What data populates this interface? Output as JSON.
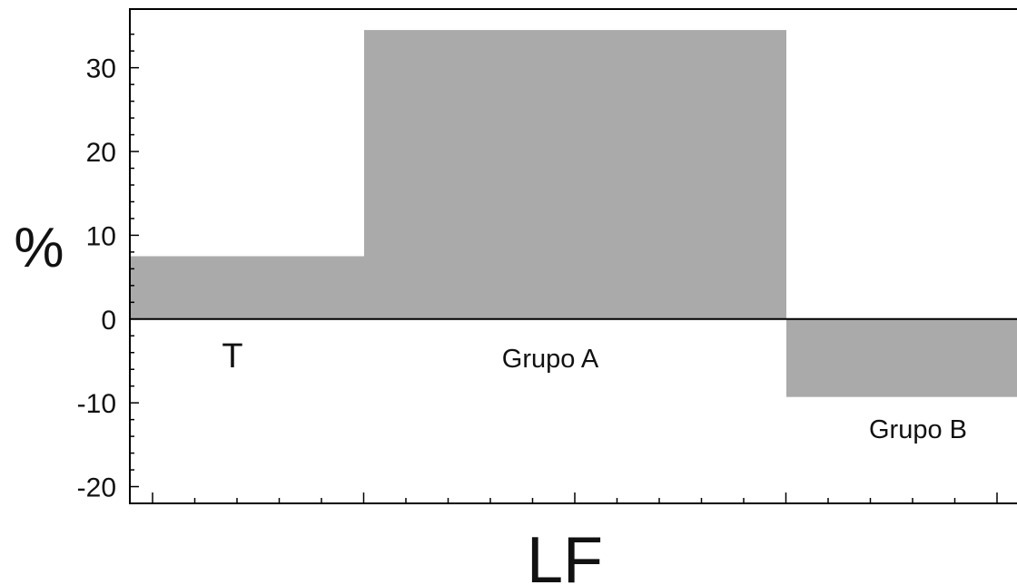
{
  "chart_data": {
    "type": "bar",
    "title": "",
    "xlabel": "LF",
    "ylabel": "%",
    "ylim": [
      -22,
      37
    ],
    "yticks": [
      -20,
      -10,
      0,
      10,
      20,
      30
    ],
    "ytick_labels": [
      "-20",
      "-10",
      "0",
      "10",
      "20",
      "30"
    ],
    "grid": false,
    "bar_color": "#aaaaaa",
    "bars": [
      {
        "label": "T",
        "value": 7.5
      },
      {
        "label": "Grupo A",
        "value": 34.5
      },
      {
        "label": "Grupo B",
        "value": -9.3
      }
    ]
  }
}
